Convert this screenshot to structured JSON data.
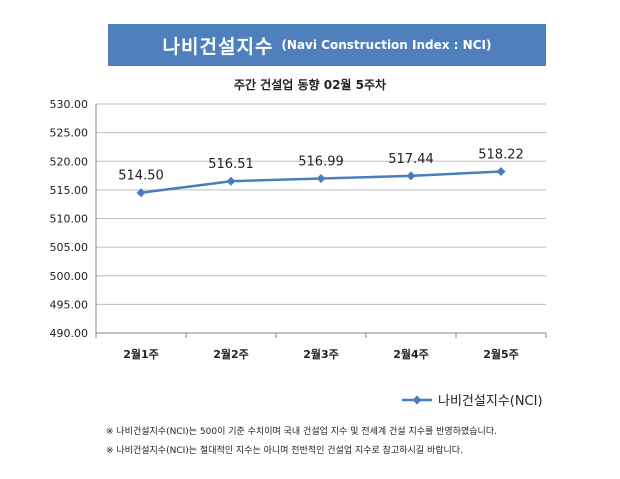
{
  "banner": {
    "title": "나비건설지수",
    "subtitle": "(Navi Construction Index : NCI)"
  },
  "chart_data": {
    "type": "line",
    "title": "주간 건설업 동향 02월 5주차",
    "categories": [
      "2월1주",
      "2월2주",
      "2월3주",
      "2월4주",
      "2월5주"
    ],
    "series": [
      {
        "name": "나비건설지수(NCI)",
        "values": [
          514.5,
          516.51,
          516.99,
          517.44,
          518.22
        ],
        "color": "#4a7ebb"
      }
    ],
    "data_labels": [
      "514.50",
      "516.51",
      "516.99",
      "517.44",
      "518.22"
    ],
    "y_ticks": [
      "490.00",
      "495.00",
      "500.00",
      "505.00",
      "510.00",
      "515.00",
      "520.00",
      "525.00",
      "530.00"
    ],
    "ylim": [
      490,
      530
    ],
    "grid": true,
    "legend": "bottom-right"
  },
  "notes": [
    "※ 나비건설지수(NCI)는 500이 기준 수치이며 국내 건설업 지수 및 전세계 건설 지수를 반영하였습니다.",
    "※ 나비건설지수(NCI)는 절대적인 지수는 아니며 전반적인 건설업 지수로 참고하시길 바랍니다."
  ]
}
